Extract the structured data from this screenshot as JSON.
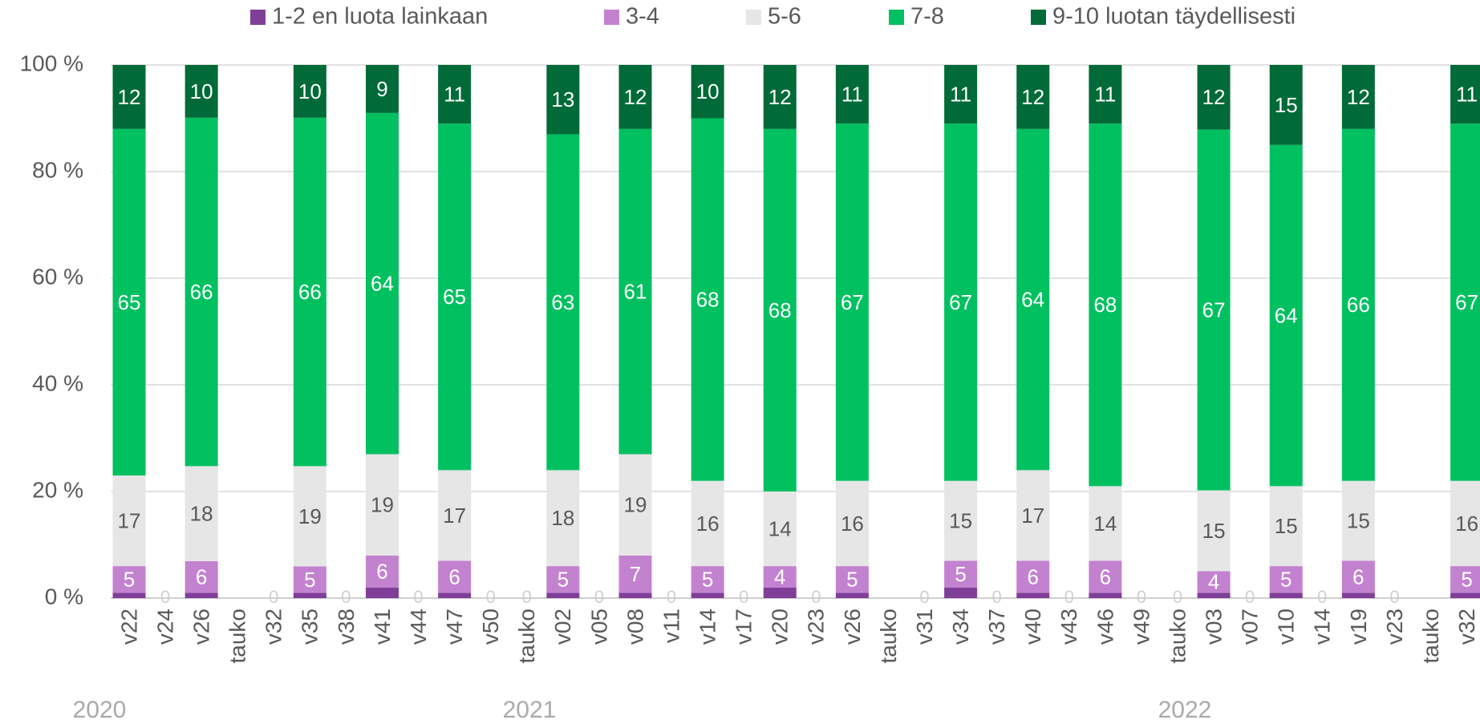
{
  "chart_data": {
    "type": "bar",
    "stacked": "percent",
    "legend_position": "top",
    "grid": true,
    "categories": [
      "v22",
      "v24",
      "v26",
      "tauko",
      "v32",
      "v35",
      "v38",
      "v41",
      "v44",
      "v47",
      "v50",
      "tauko",
      "v02",
      "v05",
      "v08",
      "v11",
      "v14",
      "v17",
      "v20",
      "v23",
      "v26",
      "tauko",
      "v31",
      "v34",
      "v37",
      "v40",
      "v43",
      "v46",
      "v49",
      "tauko",
      "v03",
      "v07",
      "v10",
      "v14",
      "v19",
      "v23",
      "tauko",
      "v32"
    ],
    "year_labels": [
      "2020",
      "2021",
      "2022"
    ],
    "ylim": [
      0,
      100
    ],
    "yticks": [
      {
        "value": 0,
        "label": "0 %"
      },
      {
        "value": 20,
        "label": "20 %"
      },
      {
        "value": 40,
        "label": "40 %"
      },
      {
        "value": 60,
        "label": "60 %"
      },
      {
        "value": 80,
        "label": "80 %"
      },
      {
        "value": 100,
        "label": "100 %"
      }
    ],
    "series": [
      {
        "name": "1-2 en luota lainkaan",
        "color": "#7f3f98",
        "values": [
          1,
          0,
          1,
          null,
          0,
          1,
          0,
          2,
          0,
          1,
          0,
          0,
          1,
          0,
          1,
          0,
          1,
          0,
          2,
          0,
          1,
          null,
          0,
          2,
          0,
          1,
          0,
          1,
          0,
          0,
          1,
          0,
          1,
          0,
          1,
          0,
          null,
          1
        ]
      },
      {
        "name": "3-4",
        "color": "#c382d0",
        "values": [
          5,
          0,
          6,
          null,
          0,
          5,
          0,
          6,
          0,
          6,
          0,
          0,
          5,
          0,
          7,
          0,
          5,
          0,
          4,
          0,
          5,
          null,
          0,
          5,
          0,
          6,
          0,
          6,
          0,
          0,
          4,
          0,
          5,
          0,
          6,
          0,
          null,
          5
        ]
      },
      {
        "name": "5-6",
        "color": "#e6e6e6",
        "values": [
          17,
          0,
          18,
          null,
          0,
          19,
          0,
          19,
          0,
          17,
          0,
          0,
          18,
          0,
          19,
          0,
          16,
          0,
          14,
          0,
          16,
          null,
          0,
          15,
          0,
          17,
          0,
          14,
          0,
          0,
          15,
          0,
          15,
          0,
          15,
          0,
          null,
          16
        ]
      },
      {
        "name": "7-8",
        "color": "#00c060",
        "values": [
          65,
          0,
          66,
          null,
          0,
          66,
          0,
          64,
          0,
          65,
          0,
          0,
          63,
          0,
          61,
          0,
          68,
          0,
          68,
          0,
          67,
          null,
          0,
          67,
          0,
          64,
          0,
          68,
          0,
          0,
          67,
          0,
          64,
          0,
          66,
          0,
          null,
          67
        ]
      },
      {
        "name": "9-10 luotan täydellisesti",
        "color": "#006b38",
        "values": [
          12,
          0,
          10,
          null,
          0,
          10,
          0,
          9,
          0,
          11,
          0,
          0,
          13,
          0,
          12,
          0,
          10,
          0,
          12,
          0,
          11,
          null,
          0,
          11,
          0,
          12,
          0,
          11,
          0,
          0,
          12,
          0,
          15,
          0,
          12,
          0,
          null,
          11
        ]
      }
    ]
  }
}
